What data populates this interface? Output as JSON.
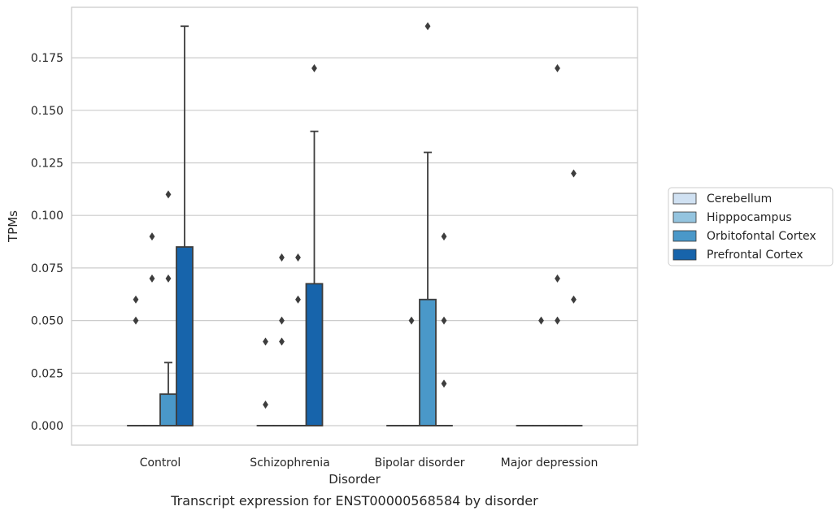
{
  "chart_data": {
    "type": "boxplot",
    "categories": [
      "Control",
      "Schizophrenia",
      "Bipolar disorder",
      "Major depression"
    ],
    "xlabel": "Disorder",
    "ylabel": "TPMs",
    "caption": "Transcript expression for ENST00000568584 by disorder",
    "ylim": [
      -0.009,
      0.2
    ],
    "yticks": [
      0.0,
      0.025,
      0.05,
      0.075,
      0.1,
      0.125,
      0.15,
      0.175
    ],
    "ytick_labels": [
      "0.000",
      "0.025",
      "0.050",
      "0.075",
      "0.100",
      "0.125",
      "0.150",
      "0.175"
    ],
    "grid": "horizontal",
    "legend_position": "right",
    "series": [
      {
        "name": "Cerebellum",
        "color": "#d0e1f2",
        "boxes": [
          {
            "q1": 0,
            "median": 0,
            "q3": 0,
            "whisker_low": 0,
            "whisker_high": 0,
            "outliers": [
              0.05,
              0.06
            ]
          },
          {
            "q1": 0,
            "median": 0,
            "q3": 0,
            "whisker_low": 0,
            "whisker_high": 0,
            "outliers": [
              0.01,
              0.04
            ]
          },
          {
            "q1": 0,
            "median": 0,
            "q3": 0,
            "whisker_low": 0,
            "whisker_high": 0,
            "outliers": []
          },
          {
            "q1": 0,
            "median": 0,
            "q3": 0,
            "whisker_low": 0,
            "whisker_high": 0,
            "outliers": []
          }
        ]
      },
      {
        "name": "Hipppocampus",
        "color": "#94c4df",
        "boxes": [
          {
            "q1": 0,
            "median": 0,
            "q3": 0,
            "whisker_low": 0,
            "whisker_high": 0,
            "outliers": [
              0.07,
              0.09
            ]
          },
          {
            "q1": 0,
            "median": 0,
            "q3": 0,
            "whisker_low": 0,
            "whisker_high": 0,
            "outliers": [
              0.04,
              0.05,
              0.08
            ]
          },
          {
            "q1": 0,
            "median": 0,
            "q3": 0,
            "whisker_low": 0,
            "whisker_high": 0,
            "outliers": [
              0.05
            ]
          },
          {
            "q1": 0,
            "median": 0,
            "q3": 0,
            "whisker_low": 0,
            "whisker_high": 0,
            "outliers": [
              0.05
            ]
          }
        ]
      },
      {
        "name": "Orbitofontal Cortex",
        "color": "#4a98c9",
        "boxes": [
          {
            "q1": 0,
            "median": 0,
            "q3": 0.015,
            "whisker_low": 0,
            "whisker_high": 0.03,
            "outliers": [
              0.07,
              0.11
            ]
          },
          {
            "q1": 0,
            "median": 0,
            "q3": 0,
            "whisker_low": 0,
            "whisker_high": 0,
            "outliers": [
              0.06,
              0.08
            ]
          },
          {
            "q1": 0,
            "median": 0,
            "q3": 0.06,
            "whisker_low": 0,
            "whisker_high": 0.13,
            "outliers": [
              0.19
            ]
          },
          {
            "q1": 0,
            "median": 0,
            "q3": 0,
            "whisker_low": 0,
            "whisker_high": 0,
            "outliers": [
              0.05,
              0.07,
              0.17
            ]
          }
        ]
      },
      {
        "name": "Prefrontal Cortex",
        "color": "#1764ab",
        "boxes": [
          {
            "q1": 0,
            "median": 0,
            "q3": 0.085,
            "whisker_low": 0,
            "whisker_high": 0.19,
            "outliers": []
          },
          {
            "q1": 0,
            "median": 0,
            "q3": 0.0675,
            "whisker_low": 0,
            "whisker_high": 0.14,
            "outliers": [
              0.17
            ]
          },
          {
            "q1": 0,
            "median": 0,
            "q3": 0,
            "whisker_low": 0,
            "whisker_high": 0,
            "outliers": [
              0.02,
              0.05,
              0.09
            ]
          },
          {
            "q1": 0,
            "median": 0,
            "q3": 0,
            "whisker_low": 0,
            "whisker_high": 0,
            "outliers": [
              0.06,
              0.12
            ]
          }
        ]
      }
    ]
  }
}
